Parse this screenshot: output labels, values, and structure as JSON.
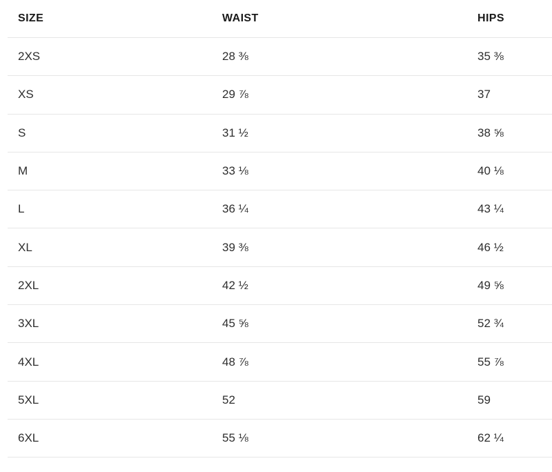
{
  "table": {
    "headers": [
      "SIZE",
      "WAIST",
      "HIPS"
    ],
    "rows": [
      {
        "size": "2XS",
        "waist": "28 ⅜",
        "hips": "35 ⅜"
      },
      {
        "size": "XS",
        "waist": "29 ⅞",
        "hips": "37"
      },
      {
        "size": "S",
        "waist": "31 ½",
        "hips": "38 ⅝"
      },
      {
        "size": "M",
        "waist": "33 ⅛",
        "hips": "40 ⅛"
      },
      {
        "size": "L",
        "waist": "36 ¼",
        "hips": "43 ¼"
      },
      {
        "size": "XL",
        "waist": "39 ⅜",
        "hips": "46 ½"
      },
      {
        "size": "2XL",
        "waist": "42 ½",
        "hips": "49 ⅝"
      },
      {
        "size": "3XL",
        "waist": "45 ⅝",
        "hips": "52 ¾"
      },
      {
        "size": "4XL",
        "waist": "48 ⅞",
        "hips": "55 ⅞"
      },
      {
        "size": "5XL",
        "waist": "52",
        "hips": "59"
      },
      {
        "size": "6XL",
        "waist": "55 ⅛",
        "hips": "62 ¼"
      }
    ]
  },
  "colors": {
    "background": "#ffffff",
    "header_text": "#1a1a1a",
    "body_text": "#2e2e2e",
    "divider": "#e6e6e6"
  }
}
